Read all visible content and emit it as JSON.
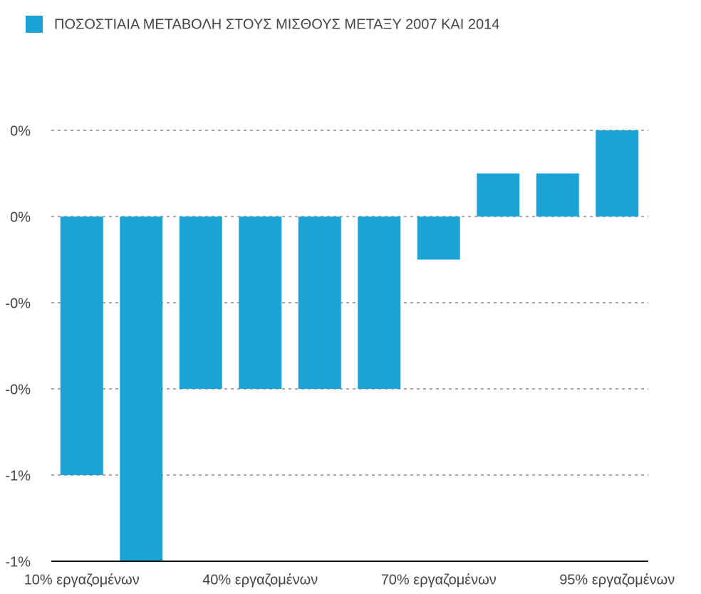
{
  "chart_data": {
    "type": "bar",
    "legend": "ΠΟΣΟΣΤΙΑΙΑ ΜΕΤΑΒΟΛΗ ΣΤΟΥΣ ΜΙΣΘΟΥΣ ΜΕΤΑΞΥ 2007 ΚΑΙ 2014",
    "categories": [
      "10% εργαζομένων",
      null,
      null,
      "40% εργαζομένων",
      null,
      null,
      "70% εργαζομένων",
      null,
      null,
      "95% εργαζομένων"
    ],
    "values": [
      -0.75,
      -1,
      -0.5,
      -0.5,
      -0.5,
      -0.5,
      -0.125,
      0.125,
      0.125,
      0.25
    ],
    "color": "#1ba3d6",
    "ylim": [
      -1,
      0.25
    ],
    "yticks": [
      {
        "value": 0.25,
        "label": "0%"
      },
      {
        "value": 0,
        "label": "0%"
      },
      {
        "value": -0.25,
        "label": "-0%"
      },
      {
        "value": -0.5,
        "label": "-0%"
      },
      {
        "value": -0.75,
        "label": "-1%"
      },
      {
        "value": -1,
        "label": "-1%"
      }
    ],
    "grid": true
  }
}
